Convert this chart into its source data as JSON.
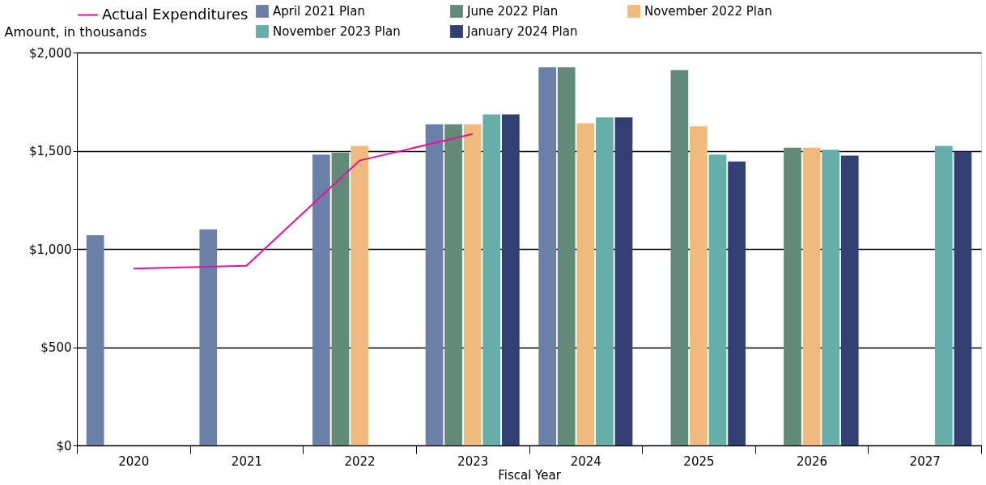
{
  "chart_data": {
    "type": "bar",
    "xlabel": "Fiscal Year",
    "ylabel": "Amount, in thousands",
    "categories": [
      "2020",
      "2021",
      "2022",
      "2023",
      "2024",
      "2025",
      "2026",
      "2027"
    ],
    "series": [
      {
        "name": "April 2021 Plan",
        "color": "#6b80a8",
        "values": [
          1070,
          1100,
          1480,
          1635,
          1925,
          null,
          null,
          null
        ]
      },
      {
        "name": "June 2022 Plan",
        "color": "#628a78",
        "values": [
          null,
          null,
          1490,
          1635,
          1925,
          1910,
          1515,
          null
        ]
      },
      {
        "name": "November 2022 Plan",
        "color": "#f0ba7c",
        "values": [
          null,
          null,
          1525,
          1635,
          1640,
          1625,
          1515,
          null
        ]
      },
      {
        "name": "November 2023 Plan",
        "color": "#66aeaa",
        "values": [
          null,
          null,
          null,
          1685,
          1670,
          1480,
          1505,
          1525
        ]
      },
      {
        "name": "January 2024 Plan",
        "color": "#323f72",
        "values": [
          null,
          null,
          null,
          1685,
          1670,
          1445,
          1475,
          1495
        ]
      },
      {
        "name": "Actual Expenditures",
        "type": "line",
        "color": "#e8119a",
        "values": [
          900,
          915,
          1450,
          1585,
          null,
          null,
          null,
          null
        ]
      }
    ],
    "ylim": [
      0,
      2000
    ],
    "yticks": [
      {
        "value": 0,
        "label": "$0"
      },
      {
        "value": 500,
        "label": "$500"
      },
      {
        "value": 1000,
        "label": "$1,000"
      },
      {
        "value": 1500,
        "label": "$1,500"
      },
      {
        "value": 2000,
        "label": "$2,000"
      }
    ],
    "grid": "y",
    "legend": "top",
    "marker": "none",
    "line_style": "solid"
  }
}
